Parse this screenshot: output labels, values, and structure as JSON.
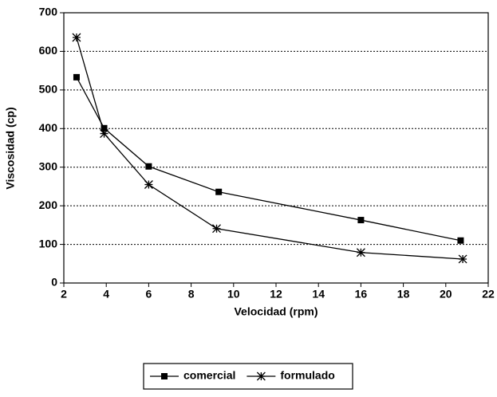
{
  "chart_data": {
    "type": "line",
    "x_label": "Velocidad (rpm)",
    "y_label": "Viscosidad (cp)",
    "xlim": [
      2,
      22
    ],
    "xticks": [
      2,
      4,
      6,
      8,
      10,
      12,
      14,
      16,
      18,
      20,
      22
    ],
    "ylim": [
      0,
      700
    ],
    "yticks": [
      0,
      100,
      200,
      300,
      400,
      500,
      600,
      700
    ],
    "grid": true,
    "legend": "bottom",
    "series": [
      {
        "name": "comercial",
        "color": "#000000",
        "marker": "square",
        "x": [
          2.6,
          3.9,
          6,
          9.3,
          16,
          20.7
        ],
        "values": [
          533,
          401,
          302,
          236,
          163,
          110
        ]
      },
      {
        "name": "formulado",
        "color": "#000000",
        "marker": "asterisk",
        "x": [
          2.6,
          3.9,
          6,
          9.2,
          16,
          20.8
        ],
        "values": [
          636,
          387,
          255,
          141,
          79,
          62
        ]
      }
    ]
  }
}
